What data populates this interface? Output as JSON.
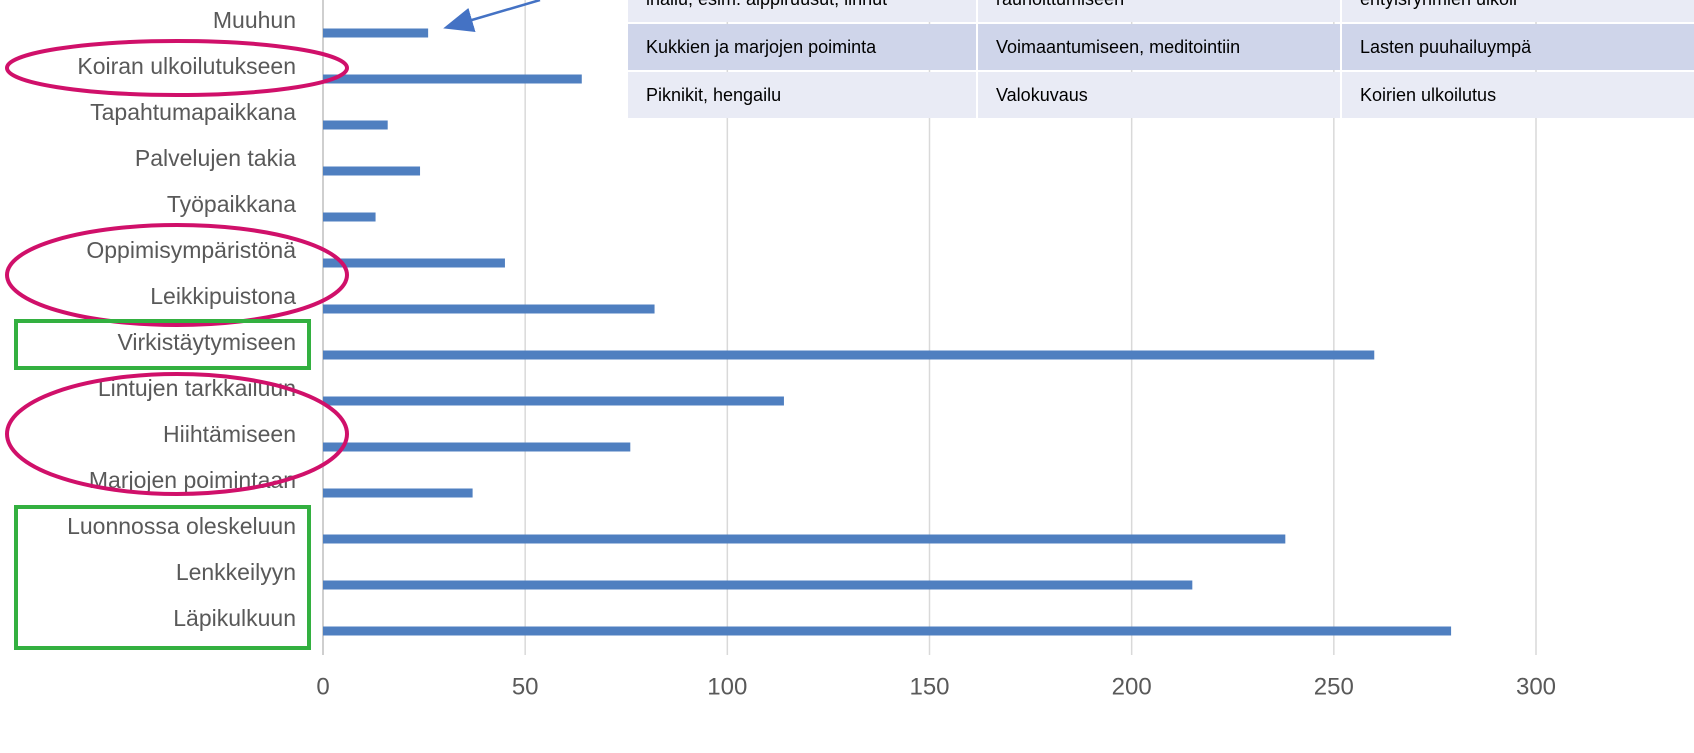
{
  "chart_data": {
    "type": "hbar",
    "categories": [
      "Muuhun",
      "Koiran ulkoilutukseen",
      "Tapahtumapaikkana",
      "Palvelujen takia",
      "Työpaikkana",
      "Oppimisympäristönä",
      "Leikkipuistona",
      "Virkistäytymiseen",
      "Lintujen tarkkailuun",
      "Hiihtämiseen",
      "Marjojen poimintaan",
      "Luonnossa oleskeluun",
      "Lenkkeilyyn",
      "Läpikulkuun"
    ],
    "values": [
      26,
      64,
      16,
      24,
      13,
      45,
      82,
      260,
      114,
      76,
      37,
      238,
      215,
      279
    ],
    "color": "#4f7fc0",
    "xlim": [
      0,
      300
    ],
    "xticks": [
      0,
      50,
      100,
      150,
      200,
      250,
      300
    ],
    "grid": true
  },
  "table": {
    "rows": [
      [
        "ihailu, esim. alppiruusut, linnut",
        "rauhoittumiseen",
        "erityisryhmien ulkoil"
      ],
      [
        "Kukkien ja marjojen poiminta",
        "Voimaantumiseen, meditointiin",
        "Lasten puuhailuympä"
      ],
      [
        "Piknikit, hengailu",
        "Valokuvaus",
        "Koirien ulkoilutus"
      ]
    ]
  }
}
